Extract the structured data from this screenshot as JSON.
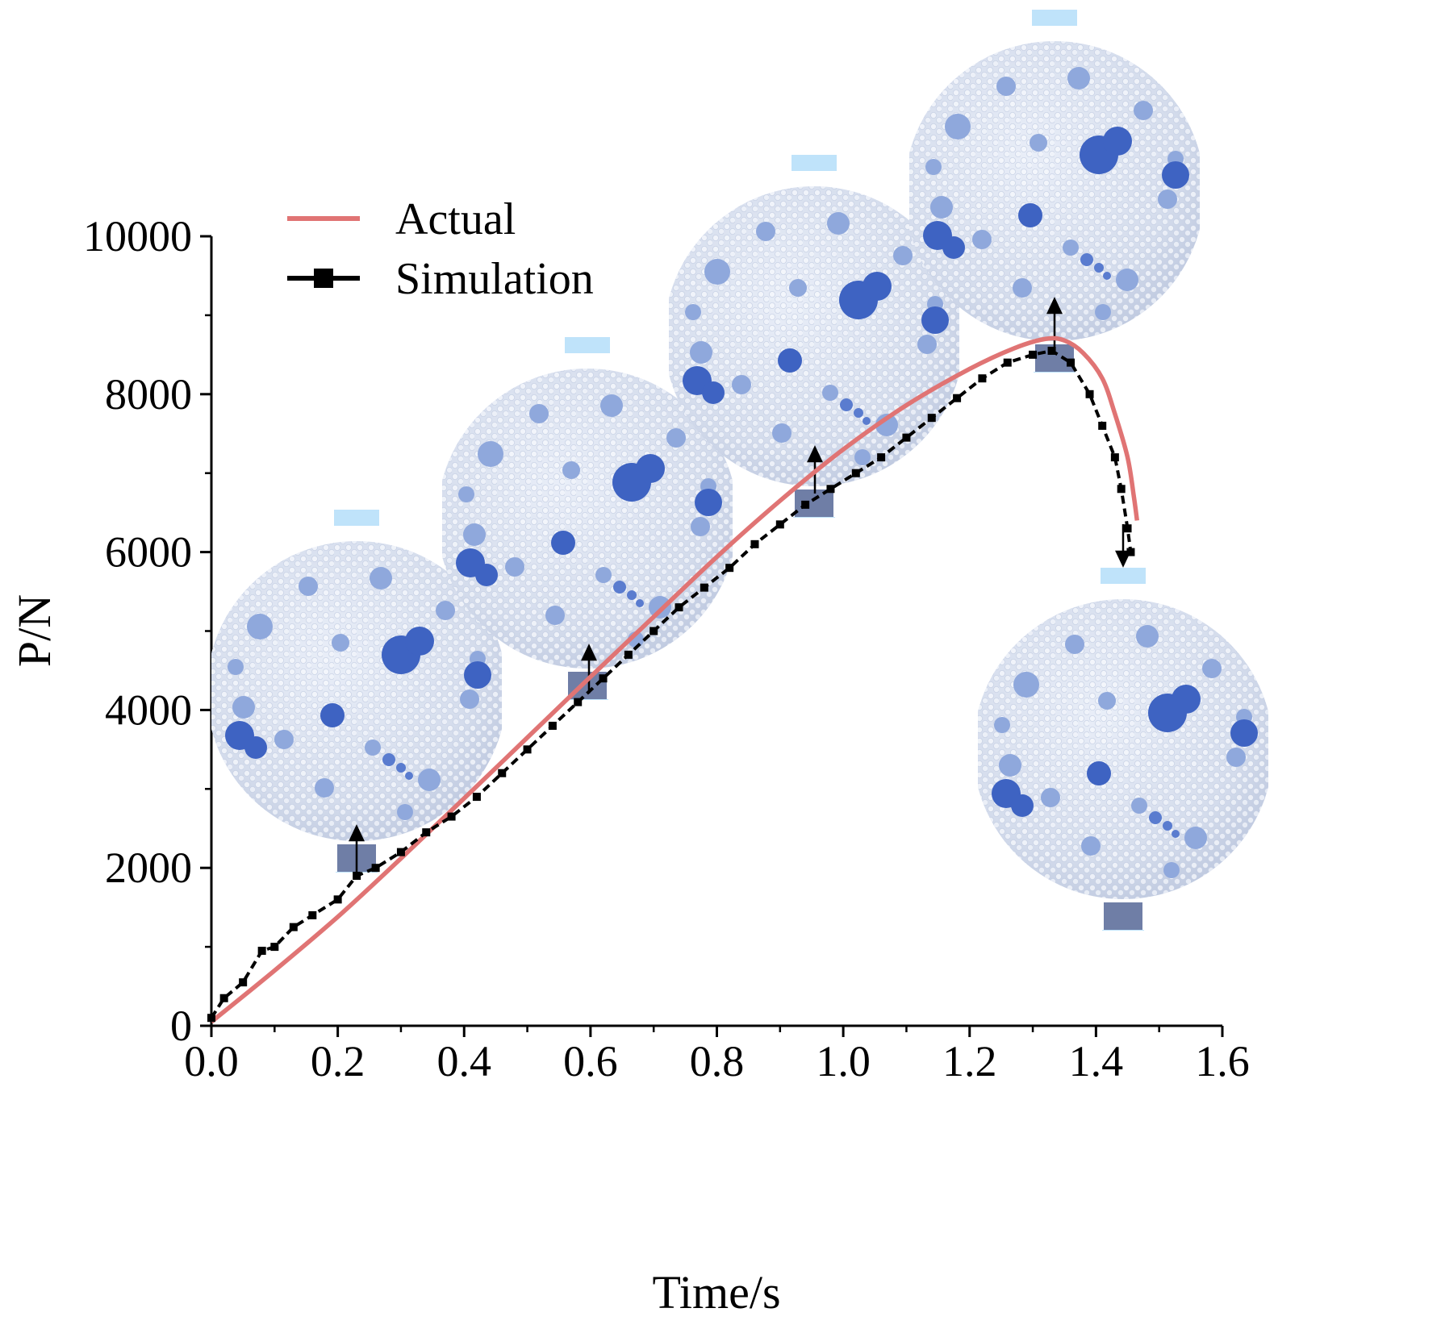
{
  "chart_data": {
    "type": "line",
    "title": "",
    "xlabel": "Time/s",
    "ylabel": "P/N",
    "xlim": [
      0,
      1.6
    ],
    "ylim": [
      0,
      10000
    ],
    "xticks": [
      "0.0",
      "0.2",
      "0.4",
      "0.6",
      "0.8",
      "1.0",
      "1.2",
      "1.4",
      "1.6"
    ],
    "yticks": [
      "0",
      "2000",
      "4000",
      "6000",
      "8000",
      "10000"
    ],
    "legend_position": "top-left",
    "series": [
      {
        "name": "Actual",
        "color": "#e07474",
        "style": "solid",
        "x": [
          0.0,
          0.1,
          0.2,
          0.3,
          0.4,
          0.5,
          0.6,
          0.7,
          0.8,
          0.9,
          1.0,
          1.1,
          1.2,
          1.27,
          1.32,
          1.35,
          1.38,
          1.41,
          1.43,
          1.45,
          1.46,
          1.465
        ],
        "y": [
          50,
          700,
          1380,
          2120,
          2880,
          3650,
          4420,
          5180,
          5940,
          6650,
          7300,
          7860,
          8320,
          8580,
          8700,
          8680,
          8520,
          8200,
          7750,
          7200,
          6700,
          6400
        ]
      },
      {
        "name": "Simulation",
        "color": "#000000",
        "style": "dashed-markers",
        "x": [
          0.0,
          0.02,
          0.05,
          0.08,
          0.1,
          0.13,
          0.16,
          0.2,
          0.23,
          0.26,
          0.3,
          0.34,
          0.38,
          0.42,
          0.46,
          0.5,
          0.54,
          0.58,
          0.62,
          0.66,
          0.7,
          0.74,
          0.78,
          0.82,
          0.86,
          0.9,
          0.94,
          0.98,
          1.02,
          1.06,
          1.1,
          1.14,
          1.18,
          1.22,
          1.26,
          1.3,
          1.33,
          1.36,
          1.39,
          1.41,
          1.43,
          1.44,
          1.45,
          1.455
        ],
        "y": [
          100,
          350,
          550,
          950,
          1000,
          1250,
          1400,
          1600,
          1900,
          2000,
          2200,
          2450,
          2650,
          2900,
          3200,
          3500,
          3800,
          4100,
          4400,
          4700,
          5000,
          5300,
          5550,
          5800,
          6100,
          6350,
          6600,
          6800,
          7000,
          7200,
          7450,
          7700,
          7950,
          8200,
          8400,
          8500,
          8550,
          8400,
          8000,
          7600,
          7200,
          6800,
          6300,
          6000
        ]
      }
    ],
    "annotations": [
      {
        "name": "specimen-t025",
        "at_x": 0.235
      },
      {
        "name": "specimen-t060",
        "at_x": 0.6
      },
      {
        "name": "specimen-t095",
        "at_x": 0.955
      },
      {
        "name": "specimen-t133",
        "at_x": 1.33
      },
      {
        "name": "specimen-t145",
        "at_x": 1.45
      }
    ]
  }
}
